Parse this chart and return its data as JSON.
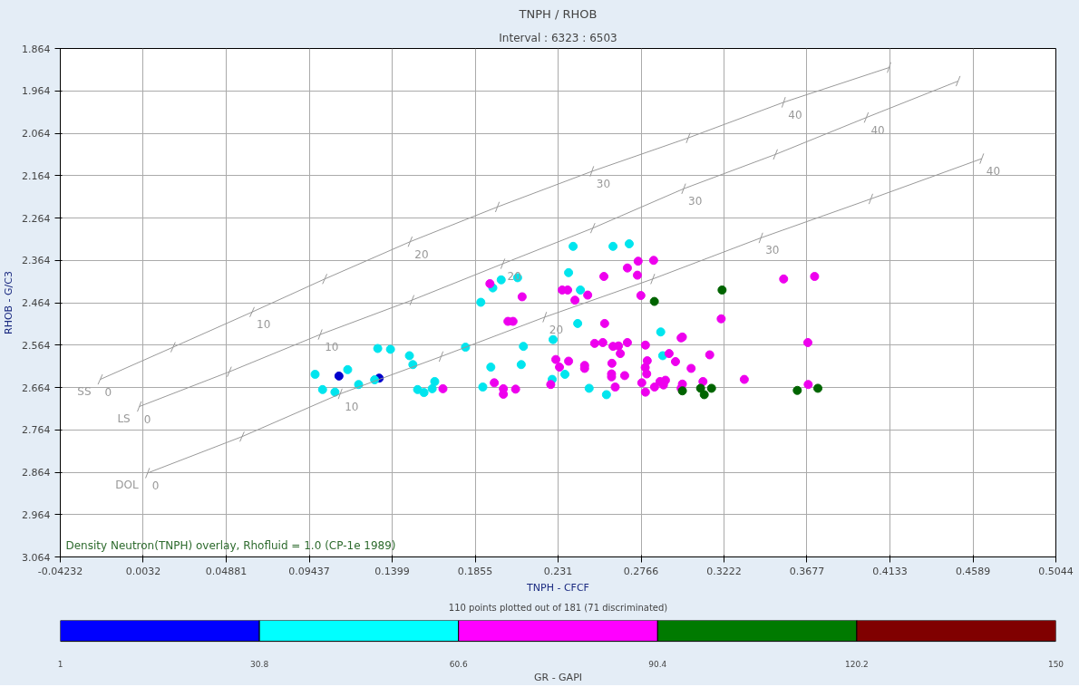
{
  "chart_data": {
    "type": "scatter",
    "title": "TNPH / RHOB",
    "subtitle": "Interval : 6323 : 6503",
    "xlabel": "TNPH - CFCF",
    "ylabel": "RHOB - G/C3",
    "clabel": "GR - GAPI",
    "xlim": [
      -0.04232,
      0.5044
    ],
    "ylim": [
      3.064,
      1.864
    ],
    "xticks": [
      -0.04232,
      0.0032,
      0.04881,
      0.09437,
      0.1399,
      0.1855,
      0.231,
      0.2766,
      0.3222,
      0.3677,
      0.4133,
      0.4589,
      0.5044
    ],
    "yticks": [
      1.864,
      1.964,
      2.064,
      2.164,
      2.264,
      2.364,
      2.464,
      2.564,
      2.664,
      2.764,
      2.864,
      2.964,
      3.064
    ],
    "clim": [
      1,
      150
    ],
    "cticks": [
      1,
      30.8,
      60.6,
      90.4,
      120.2,
      150
    ],
    "colors": [
      "#0000ff",
      "#00ffff",
      "#ff00ff",
      "#007a00",
      "#800000"
    ],
    "grid": true,
    "marker": "circle",
    "series": [
      {
        "color": "#0000cd",
        "x": [
          0.1107,
          0.1328
        ],
        "values": [
          2.637,
          2.642
        ]
      },
      {
        "color": "#00e5ee",
        "x": [
          0.0976,
          0.1017,
          0.1085,
          0.1155,
          0.1215,
          0.132,
          0.139,
          0.1303,
          0.1494,
          0.1513,
          0.1539,
          0.1574,
          0.1619,
          0.1633,
          0.1802,
          0.1886,
          0.1952,
          0.1998,
          0.2088,
          0.212,
          0.2108,
          0.1941,
          0.1897,
          0.2393,
          0.2612,
          0.2701,
          0.2368,
          0.2433,
          0.2418,
          0.2283,
          0.2874,
          0.2885,
          0.2348,
          0.2278,
          0.2481,
          0.2576
        ],
        "values": [
          2.633,
          2.669,
          2.675,
          2.622,
          2.657,
          2.572,
          2.574,
          2.646,
          2.589,
          2.61,
          2.669,
          2.676,
          2.667,
          2.65,
          2.569,
          2.463,
          2.429,
          2.41,
          2.405,
          2.567,
          2.61,
          2.616,
          2.663,
          2.331,
          2.331,
          2.325,
          2.393,
          2.434,
          2.513,
          2.551,
          2.533,
          2.589,
          2.633,
          2.645,
          2.666,
          2.681
        ]
      },
      {
        "color": "#ee00ee",
        "x": [
          0.1678,
          0.1936,
          0.2113,
          0.2035,
          0.2063,
          0.196,
          0.201,
          0.201,
          0.2077,
          0.275,
          0.2835,
          0.2691,
          0.2746,
          0.2562,
          0.2333,
          0.2363,
          0.2473,
          0.2403,
          0.2765,
          0.3549,
          0.3719,
          0.3206,
          0.2566,
          0.2511,
          0.2556,
          0.2612,
          0.2642,
          0.2691,
          0.279,
          0.2986,
          0.2993,
          0.3682,
          0.2652,
          0.2298,
          0.2318,
          0.2368,
          0.2456,
          0.2456,
          0.2606,
          0.2604,
          0.2604,
          0.2676,
          0.28,
          0.2789,
          0.2797,
          0.292,
          0.2955,
          0.3041,
          0.3143,
          0.3333,
          0.227,
          0.2624,
          0.277,
          0.279,
          0.284,
          0.287,
          0.29,
          0.2889,
          0.2993,
          0.2986,
          0.3106,
          0.3684
        ],
        "values": [
          2.667,
          2.419,
          2.45,
          2.508,
          2.508,
          2.653,
          2.667,
          2.68,
          2.668,
          2.366,
          2.364,
          2.382,
          2.399,
          2.402,
          2.434,
          2.434,
          2.446,
          2.458,
          2.447,
          2.408,
          2.402,
          2.502,
          2.513,
          2.56,
          2.558,
          2.567,
          2.566,
          2.558,
          2.564,
          2.547,
          2.545,
          2.558,
          2.584,
          2.598,
          2.616,
          2.602,
          2.612,
          2.619,
          2.607,
          2.632,
          2.639,
          2.636,
          2.601,
          2.617,
          2.632,
          2.584,
          2.603,
          2.619,
          2.587,
          2.645,
          2.657,
          2.663,
          2.653,
          2.675,
          2.663,
          2.65,
          2.647,
          2.658,
          2.656,
          2.666,
          2.65,
          2.657
        ]
      },
      {
        "color": "#006400",
        "x": [
          0.2839,
          0.3211,
          0.2993,
          0.3093,
          0.3113,
          0.3153,
          0.3624,
          0.3737
        ],
        "values": [
          2.461,
          2.434,
          2.672,
          2.666,
          2.681,
          2.666,
          2.671,
          2.666
        ]
      },
      {
        "type": "line",
        "marker": "cross",
        "name": "SS",
        "color": "#999999",
        "x": [
          -0.0204,
          0.0196,
          0.063,
          0.1029,
          0.1498,
          0.1977,
          0.2496,
          0.3025,
          0.3549,
          0.4128
        ],
        "values": [
          2.645,
          2.569,
          2.486,
          2.408,
          2.32,
          2.238,
          2.154,
          2.075,
          1.991,
          1.909
        ]
      },
      {
        "type": "line",
        "marker": "cross",
        "name": "LS",
        "color": "#999999",
        "x": [
          0.0011,
          0.0505,
          0.1004,
          0.1508,
          0.2007,
          0.2501,
          0.3,
          0.3504,
          0.4003,
          0.4507
        ],
        "values": [
          2.709,
          2.627,
          2.539,
          2.458,
          2.372,
          2.288,
          2.195,
          2.114,
          2.027,
          1.941
        ]
      },
      {
        "type": "line",
        "marker": "cross",
        "name": "DOL",
        "color": "#999999",
        "x": [
          0.0056,
          0.0575,
          0.1114,
          0.1668,
          0.2237,
          0.283,
          0.3424,
          0.4028,
          0.4637
        ],
        "values": [
          2.866,
          2.78,
          2.679,
          2.591,
          2.498,
          2.408,
          2.311,
          2.219,
          2.124
        ]
      }
    ],
    "annotations": [
      "Density Neutron(TNPH) overlay, Rhofluid = 1.0 (CP-1e 1989)",
      "110 points plotted out of 181 (71 discriminated)",
      {
        "text": "0",
        "x": -0.0204,
        "y": 2.645
      },
      {
        "text": "10",
        "x": 0.063,
        "y": 2.486
      },
      {
        "text": "20",
        "x": 0.1498,
        "y": 2.32
      },
      {
        "text": "30",
        "x": 0.2496,
        "y": 2.154
      },
      {
        "text": "40",
        "x": 0.3549,
        "y": 1.991
      },
      {
        "text": "0",
        "x": 0.0011,
        "y": 2.709
      },
      {
        "text": "10",
        "x": 0.1004,
        "y": 2.539
      },
      {
        "text": "20",
        "x": 0.2007,
        "y": 2.372
      },
      {
        "text": "30",
        "x": 0.3,
        "y": 2.195
      },
      {
        "text": "40",
        "x": 0.4003,
        "y": 2.027
      },
      {
        "text": "0",
        "x": 0.0056,
        "y": 2.866
      },
      {
        "text": "10",
        "x": 0.1114,
        "y": 2.679
      },
      {
        "text": "20",
        "x": 0.2237,
        "y": 2.498
      },
      {
        "text": "30",
        "x": 0.3424,
        "y": 2.311
      },
      {
        "text": "40",
        "x": 0.4637,
        "y": 2.124
      }
    ]
  }
}
